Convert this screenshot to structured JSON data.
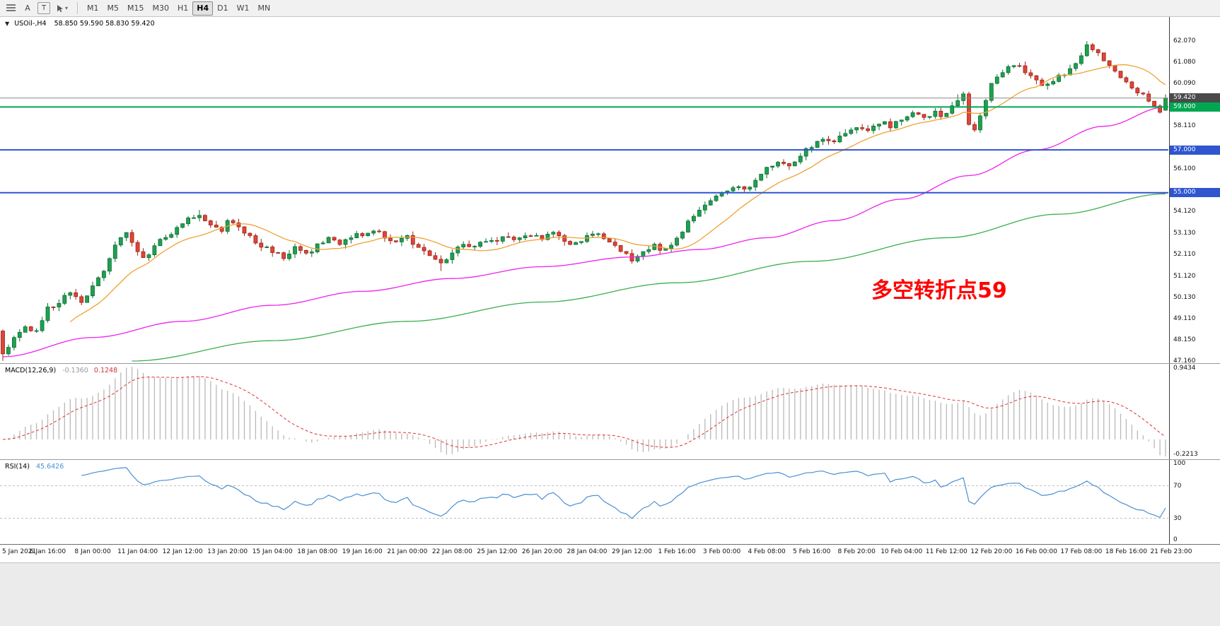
{
  "colors": {
    "bull": "#1fa050",
    "bull_dark": "#0c6e34",
    "bear": "#e04438",
    "bear_dark": "#9c2418",
    "ma_fast": "#efa234",
    "ma_mid": "#ee22ee",
    "ma_slow": "#3aae4e",
    "hline_green": "#00a651",
    "hline_blue": "#2f55cf",
    "current_price_line": "#8c8c8c",
    "macd_hist": "#b9b9b9",
    "macd_signal": "#e03232",
    "rsi_line": "#4a8fd4",
    "rsi_levels": "#c0c0c0",
    "annotation": "#ff0000",
    "badge_current": "#4a4a4a"
  },
  "toolbar": {
    "tools": [
      {
        "label": "A"
      },
      {
        "label": "T"
      }
    ],
    "timeframes": [
      "M1",
      "M5",
      "M15",
      "M30",
      "H1",
      "H4",
      "D1",
      "W1",
      "MN"
    ],
    "active_timeframe": "H4"
  },
  "chart_header": {
    "symbol": "USOil-,H4",
    "ohlc": "58.850 59.590 58.830 59.420"
  },
  "annotation": {
    "text": "多空转折点59"
  },
  "price_axis": {
    "ticks": [
      "62.070",
      "61.080",
      "60.090",
      "58.110",
      "56.100",
      "54.120",
      "53.130",
      "52.110",
      "51.120",
      "50.130",
      "49.110",
      "48.150",
      "47.160"
    ],
    "badges": [
      {
        "value": "59.420",
        "color_key": "badge_current"
      },
      {
        "value": "59.000",
        "color_key": "hline_green"
      },
      {
        "value": "57.000",
        "color_key": "hline_blue"
      },
      {
        "value": "55.000",
        "color_key": "hline_blue"
      }
    ]
  },
  "macd": {
    "label": "MACD(12,26,9)",
    "value_main": "-0.1360",
    "value_signal": "0.1248",
    "axis_max": "0.9434",
    "axis_min": "-0.2213"
  },
  "rsi": {
    "label": "RSI(14)",
    "value": "45.6426",
    "axis": [
      "100",
      "70",
      "30",
      "0"
    ],
    "levels": [
      70,
      30
    ]
  },
  "time_axis": {
    "labels": [
      "5 Jan 2021",
      "6 Jan 16:00",
      "8 Jan 00:00",
      "11 Jan 04:00",
      "12 Jan 12:00",
      "13 Jan 20:00",
      "15 Jan 04:00",
      "18 Jan 08:00",
      "19 Jan 16:00",
      "21 Jan 00:00",
      "22 Jan 08:00",
      "25 Jan 12:00",
      "26 Jan 20:00",
      "28 Jan 04:00",
      "29 Jan 12:00",
      "1 Feb 16:00",
      "3 Feb 00:00",
      "4 Feb 08:00",
      "5 Feb 16:00",
      "8 Feb 20:00",
      "10 Feb 04:00",
      "11 Feb 12:00",
      "12 Feb 20:00",
      "16 Feb 00:00",
      "17 Feb 08:00",
      "18 Feb 16:00",
      "21 Feb 23:00"
    ],
    "bars_per_label": 8
  },
  "chart_data": {
    "type": "candlestick",
    "symbol": "USOil",
    "timeframe": "H4",
    "bars": 208,
    "price_range": [
      47.05,
      63.2
    ],
    "current_ohlc": {
      "open": 58.85,
      "high": 59.59,
      "low": 58.83,
      "close": 59.42
    },
    "close_keyframes": [
      [
        0,
        47.5
      ],
      [
        2,
        48.3
      ],
      [
        4,
        48.8
      ],
      [
        6,
        48.45
      ],
      [
        8,
        49.6
      ],
      [
        10,
        49.95
      ],
      [
        12,
        50.35
      ],
      [
        14,
        49.95
      ],
      [
        16,
        50.6
      ],
      [
        18,
        51.3
      ],
      [
        20,
        52.6
      ],
      [
        22,
        53.15
      ],
      [
        24,
        52.2
      ],
      [
        25,
        51.95
      ],
      [
        27,
        52.5
      ],
      [
        29,
        52.95
      ],
      [
        31,
        53.3
      ],
      [
        33,
        53.8
      ],
      [
        35,
        54.0
      ],
      [
        37,
        53.5
      ],
      [
        39,
        53.25
      ],
      [
        40,
        53.8
      ],
      [
        42,
        53.45
      ],
      [
        44,
        52.9
      ],
      [
        46,
        52.5
      ],
      [
        48,
        52.3
      ],
      [
        50,
        52.0
      ],
      [
        52,
        52.4
      ],
      [
        54,
        52.2
      ],
      [
        56,
        52.5
      ],
      [
        58,
        52.8
      ],
      [
        60,
        52.6
      ],
      [
        62,
        52.9
      ],
      [
        64,
        53.1
      ],
      [
        66,
        53.3
      ],
      [
        68,
        52.95
      ],
      [
        70,
        52.7
      ],
      [
        72,
        52.9
      ],
      [
        74,
        52.5
      ],
      [
        76,
        52.1
      ],
      [
        78,
        51.7
      ],
      [
        80,
        52.2
      ],
      [
        82,
        52.6
      ],
      [
        84,
        52.5
      ],
      [
        86,
        52.8
      ],
      [
        88,
        52.7
      ],
      [
        90,
        53.0
      ],
      [
        92,
        52.8
      ],
      [
        94,
        53.0
      ],
      [
        96,
        52.9
      ],
      [
        98,
        53.1
      ],
      [
        100,
        52.8
      ],
      [
        102,
        52.6
      ],
      [
        104,
        52.9
      ],
      [
        106,
        53.1
      ],
      [
        108,
        52.7
      ],
      [
        110,
        52.3
      ],
      [
        112,
        51.9
      ],
      [
        114,
        52.2
      ],
      [
        116,
        52.5
      ],
      [
        118,
        52.3
      ],
      [
        120,
        52.9
      ],
      [
        122,
        53.6
      ],
      [
        124,
        54.2
      ],
      [
        126,
        54.7
      ],
      [
        128,
        54.9
      ],
      [
        130,
        55.3
      ],
      [
        132,
        55.1
      ],
      [
        134,
        55.6
      ],
      [
        136,
        56.1
      ],
      [
        138,
        56.5
      ],
      [
        140,
        56.3
      ],
      [
        142,
        56.8
      ],
      [
        144,
        57.2
      ],
      [
        146,
        57.5
      ],
      [
        148,
        57.3
      ],
      [
        150,
        57.8
      ],
      [
        152,
        58.1
      ],
      [
        154,
        57.9
      ],
      [
        156,
        58.3
      ],
      [
        158,
        58.1
      ],
      [
        160,
        58.5
      ],
      [
        162,
        58.7
      ],
      [
        164,
        58.4
      ],
      [
        166,
        58.7
      ],
      [
        168,
        58.6
      ],
      [
        170,
        59.3
      ],
      [
        171,
        59.5
      ],
      [
        172,
        58.3
      ],
      [
        173,
        58.0
      ],
      [
        175,
        59.2
      ],
      [
        176,
        60.0
      ],
      [
        178,
        60.7
      ],
      [
        180,
        61.0
      ],
      [
        182,
        60.7
      ],
      [
        184,
        60.2
      ],
      [
        186,
        60.0
      ],
      [
        188,
        60.4
      ],
      [
        190,
        60.7
      ],
      [
        192,
        61.5
      ],
      [
        193,
        61.95
      ],
      [
        195,
        61.6
      ],
      [
        197,
        60.9
      ],
      [
        199,
        60.4
      ],
      [
        200,
        60.1
      ],
      [
        202,
        59.7
      ],
      [
        204,
        59.3
      ],
      [
        205,
        59.1
      ],
      [
        206,
        58.86
      ],
      [
        207,
        59.42
      ]
    ],
    "bar_overrides": [
      {
        "bar": 0,
        "open": 48.55,
        "high": 48.62,
        "low": 47.16
      },
      {
        "bar": 35,
        "high": 54.2
      },
      {
        "bar": 78,
        "low": 51.35
      },
      {
        "bar": 170,
        "high": 59.59
      },
      {
        "bar": 193,
        "high": 62.07
      },
      {
        "bar": 207,
        "open": 58.85,
        "high": 59.59,
        "low": 58.83,
        "close": 59.42
      }
    ],
    "ma_fast_period": 13,
    "ma_mid_keyframes": [
      [
        0,
        47.35
      ],
      [
        16,
        48.25
      ],
      [
        32,
        49.0
      ],
      [
        48,
        49.75
      ],
      [
        64,
        50.4
      ],
      [
        80,
        51.0
      ],
      [
        96,
        51.55
      ],
      [
        112,
        52.0
      ],
      [
        124,
        52.35
      ],
      [
        136,
        52.9
      ],
      [
        148,
        53.7
      ],
      [
        160,
        54.7
      ],
      [
        172,
        55.8
      ],
      [
        184,
        57.0
      ],
      [
        196,
        58.1
      ],
      [
        207,
        59.0
      ]
    ],
    "ma_slow_keyframes": [
      [
        23,
        47.15
      ],
      [
        48,
        48.1
      ],
      [
        72,
        49.0
      ],
      [
        96,
        49.9
      ],
      [
        120,
        50.8
      ],
      [
        144,
        51.8
      ],
      [
        168,
        52.9
      ],
      [
        188,
        54.0
      ],
      [
        207,
        54.95
      ]
    ],
    "hlines": [
      {
        "price": 59.0,
        "color_key": "hline_green",
        "width": 2
      },
      {
        "price": 57.0,
        "color_key": "hline_blue",
        "width": 2
      },
      {
        "price": 55.0,
        "color_key": "hline_blue",
        "width": 2
      },
      {
        "price": 59.42,
        "color_key": "current_price_line",
        "width": 1
      }
    ],
    "macd_params": [
      12,
      26,
      9
    ],
    "rsi_period": 14
  }
}
